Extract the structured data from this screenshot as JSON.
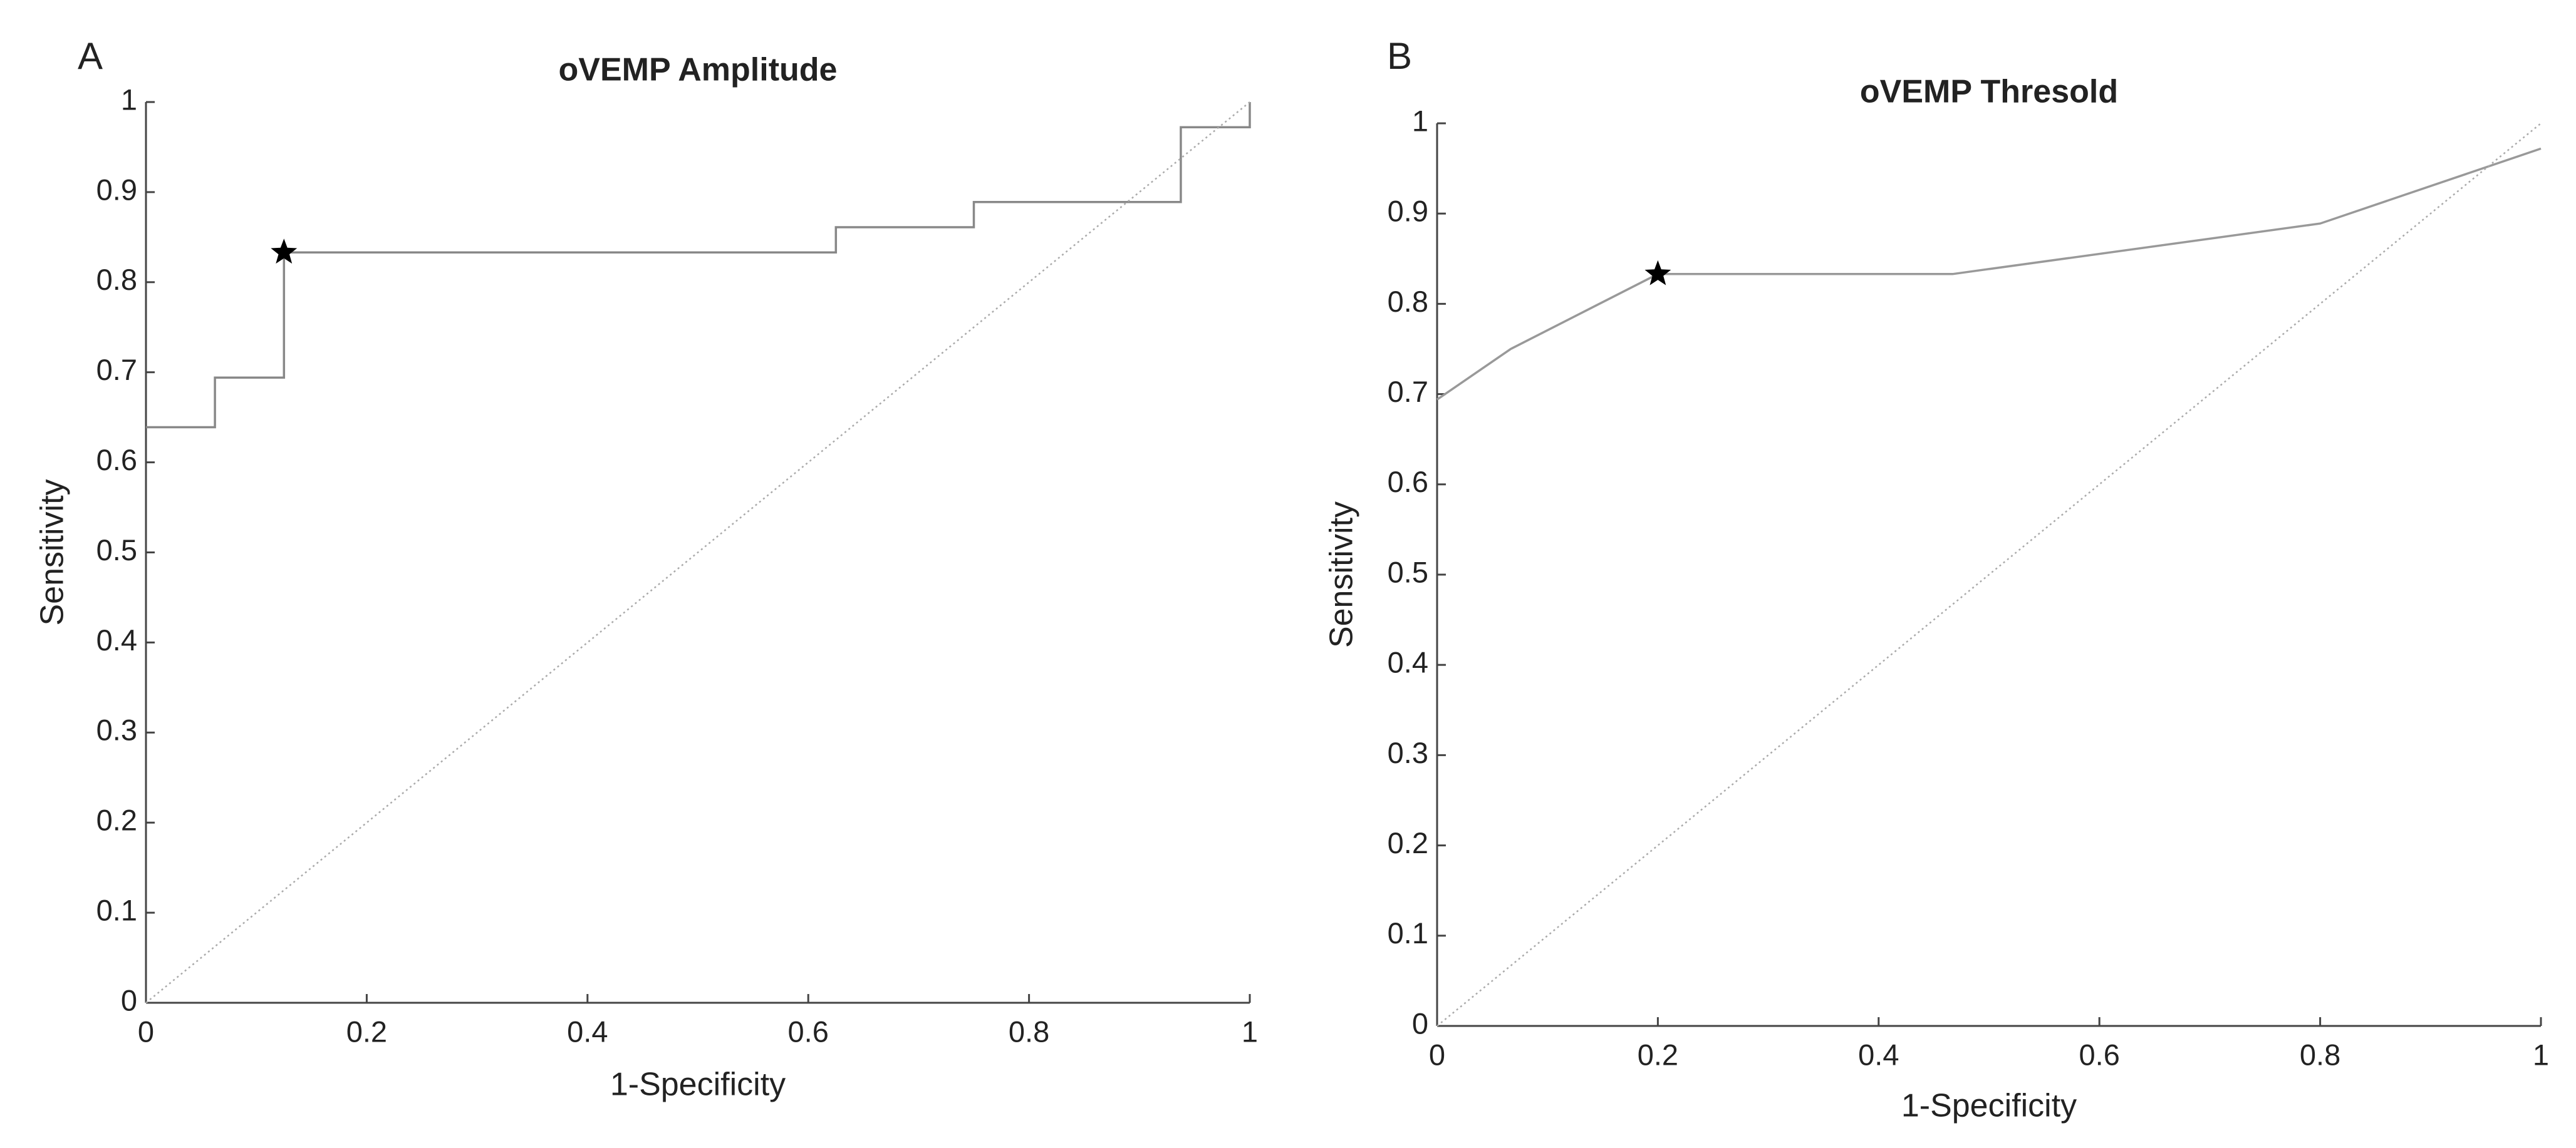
{
  "chart_data": [
    {
      "type": "line",
      "panel_label": "A",
      "title": "oVEMP Amplitude",
      "xlabel": "1-Specificity",
      "ylabel": "Sensitivity",
      "xlim": [
        0,
        1
      ],
      "ylim": [
        0,
        1
      ],
      "xticks": [
        0,
        0.2,
        0.4,
        0.6,
        0.8,
        1
      ],
      "yticks": [
        0,
        0.1,
        0.2,
        0.3,
        0.4,
        0.5,
        0.6,
        0.7,
        0.8,
        0.9,
        1
      ],
      "series": [
        {
          "x": [
            0,
            0.0625,
            0.0625,
            0.125,
            0.125,
            0.625,
            0.625,
            0.75,
            0.75,
            0.9375,
            0.9375,
            1,
            1
          ],
          "values": [
            0.639,
            0.639,
            0.694,
            0.694,
            0.833,
            0.833,
            0.861,
            0.861,
            0.889,
            0.889,
            0.972,
            0.972,
            1
          ],
          "color": "#888888",
          "linestyle": "solid",
          "marker": "none"
        },
        {
          "x": [
            0,
            1
          ],
          "values": [
            0,
            1
          ],
          "color": "#aaaaaa",
          "linestyle": "dotted",
          "marker": "none"
        },
        {
          "x": [
            0.125
          ],
          "values": [
            0.833
          ],
          "color": "#000000",
          "linestyle": "none",
          "marker": "star"
        }
      ]
    },
    {
      "type": "line",
      "panel_label": "B",
      "title": "oVEMP Thresold",
      "xlabel": "1-Specificity",
      "ylabel": "Sensitivity",
      "xlim": [
        0,
        1
      ],
      "ylim": [
        0,
        1
      ],
      "xticks": [
        0,
        0.2,
        0.4,
        0.6,
        0.8,
        1
      ],
      "yticks": [
        0,
        0.1,
        0.2,
        0.3,
        0.4,
        0.5,
        0.6,
        0.7,
        0.8,
        0.9,
        1
      ],
      "series": [
        {
          "x": [
            0,
            0.0667,
            0.2,
            0.467,
            0.8,
            1
          ],
          "values": [
            0.694,
            0.75,
            0.833,
            0.833,
            0.889,
            0.972
          ],
          "color": "#999999",
          "linestyle": "solid",
          "marker": "none"
        },
        {
          "x": [
            0,
            1
          ],
          "values": [
            0,
            1
          ],
          "color": "#aaaaaa",
          "linestyle": "dotted",
          "marker": "none"
        },
        {
          "x": [
            0.2
          ],
          "values": [
            0.833
          ],
          "color": "#000000",
          "linestyle": "none",
          "marker": "star"
        }
      ]
    }
  ]
}
